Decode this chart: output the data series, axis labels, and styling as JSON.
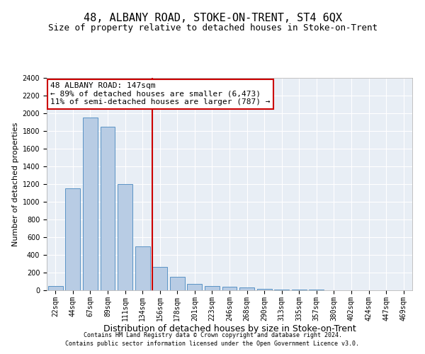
{
  "title": "48, ALBANY ROAD, STOKE-ON-TRENT, ST4 6QX",
  "subtitle": "Size of property relative to detached houses in Stoke-on-Trent",
  "xlabel": "Distribution of detached houses by size in Stoke-on-Trent",
  "ylabel": "Number of detached properties",
  "categories": [
    "22sqm",
    "44sqm",
    "67sqm",
    "89sqm",
    "111sqm",
    "134sqm",
    "156sqm",
    "178sqm",
    "201sqm",
    "223sqm",
    "246sqm",
    "268sqm",
    "290sqm",
    "313sqm",
    "335sqm",
    "357sqm",
    "380sqm",
    "402sqm",
    "424sqm",
    "447sqm",
    "469sqm"
  ],
  "values": [
    50,
    1150,
    1950,
    1850,
    1200,
    500,
    265,
    150,
    75,
    50,
    40,
    35,
    20,
    10,
    8,
    5,
    3,
    2,
    2,
    2,
    2
  ],
  "bar_color": "#b8cce4",
  "bar_edge_color": "#5a93c5",
  "property_line_index": 6,
  "property_line_color": "#cc0000",
  "annotation_line1": "48 ALBANY ROAD: 147sqm",
  "annotation_line2": "← 89% of detached houses are smaller (6,473)",
  "annotation_line3": "11% of semi-detached houses are larger (787) →",
  "annotation_box_color": "white",
  "annotation_box_edge_color": "#cc0000",
  "ylim": [
    0,
    2400
  ],
  "yticks": [
    0,
    200,
    400,
    600,
    800,
    1000,
    1200,
    1400,
    1600,
    1800,
    2000,
    2200,
    2400
  ],
  "background_color": "#e8eef5",
  "footer1": "Contains HM Land Registry data © Crown copyright and database right 2024.",
  "footer2": "Contains public sector information licensed under the Open Government Licence v3.0.",
  "title_fontsize": 11,
  "subtitle_fontsize": 9,
  "xlabel_fontsize": 9,
  "ylabel_fontsize": 8,
  "tick_fontsize": 7,
  "annotation_fontsize": 8,
  "footer_fontsize": 6
}
